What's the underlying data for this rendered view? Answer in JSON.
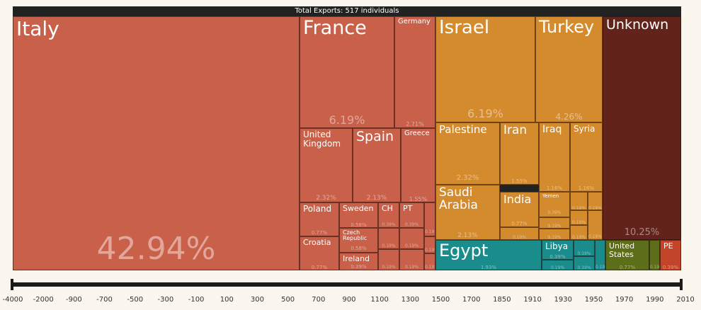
{
  "header": {
    "title": "Total Exports: 517 individuals"
  },
  "colors": {
    "europe": "#c96049",
    "asia": "#d38b2e",
    "africa": "#1a8c8c",
    "unknown": "#62231b",
    "america": "#5c6e19",
    "southamerica": "#c2452a"
  },
  "chart_data": {
    "type": "treemap",
    "title": "Total Exports: 517 individuals",
    "total": 517,
    "tiles": [
      {
        "name": "Italy",
        "group": "europe",
        "percent": "42.94%"
      },
      {
        "name": "France",
        "group": "europe",
        "percent": "6.19%"
      },
      {
        "name": "Germany",
        "group": "europe",
        "percent": "2.71%"
      },
      {
        "name": "United Kingdom",
        "group": "europe",
        "percent": "2.32%"
      },
      {
        "name": "Spain",
        "group": "europe",
        "percent": "2.13%"
      },
      {
        "name": "Greece",
        "group": "europe",
        "percent": "1.55%"
      },
      {
        "name": "Poland",
        "group": "europe",
        "percent": "0.77%"
      },
      {
        "name": "Sweden",
        "group": "europe",
        "percent": "0.58%"
      },
      {
        "name": "CH",
        "group": "europe",
        "percent": "0.39%"
      },
      {
        "name": "PT",
        "group": "europe",
        "percent": "0.39%"
      },
      {
        "name": "Croatia",
        "group": "europe",
        "percent": "0.77%"
      },
      {
        "name": "Czech Republic",
        "group": "europe",
        "percent": "0.58%"
      },
      {
        "name": "Ireland",
        "group": "europe",
        "percent": "0.39%"
      },
      {
        "name": "",
        "group": "europe",
        "percent": "0.19%"
      },
      {
        "name": "",
        "group": "europe",
        "percent": "0.19%"
      },
      {
        "name": "",
        "group": "europe",
        "percent": "0.19%"
      },
      {
        "name": "",
        "group": "europe",
        "percent": "0.19%"
      },
      {
        "name": "",
        "group": "europe",
        "percent": "0.19%"
      },
      {
        "name": "",
        "group": "europe",
        "percent": "0.19%"
      },
      {
        "name": "",
        "group": "europe",
        "percent": "0.19%"
      },
      {
        "name": "",
        "group": "europe",
        "percent": "0.19%"
      },
      {
        "name": "",
        "group": "europe",
        "percent": "0.19%"
      },
      {
        "name": "Israel",
        "group": "asia",
        "percent": "6.19%"
      },
      {
        "name": "Turkey",
        "group": "asia",
        "percent": "4.26%"
      },
      {
        "name": "Palestine",
        "group": "asia",
        "percent": "2.32%"
      },
      {
        "name": "Iran",
        "group": "asia",
        "percent": "1.55%"
      },
      {
        "name": "Iraq",
        "group": "asia",
        "percent": "1.16%"
      },
      {
        "name": "Syria",
        "group": "asia",
        "percent": "1.16%"
      },
      {
        "name": "Saudi Arabia",
        "group": "asia",
        "percent": "2.13%"
      },
      {
        "name": "India",
        "group": "asia",
        "percent": "0.77%"
      },
      {
        "name": "Yemen",
        "group": "asia",
        "percent": "0.39%"
      },
      {
        "name": "",
        "group": "asia",
        "percent": "0.19%"
      },
      {
        "name": "",
        "group": "asia",
        "percent": "0.19%"
      },
      {
        "name": "",
        "group": "asia",
        "percent": "0.19%"
      },
      {
        "name": "",
        "group": "asia",
        "percent": "0.19%"
      },
      {
        "name": "",
        "group": "asia",
        "percent": "0.19%"
      },
      {
        "name": "",
        "group": "asia",
        "percent": "0.19%"
      },
      {
        "name": "",
        "group": "asia",
        "percent": "0.19%"
      },
      {
        "name": "",
        "group": "asia",
        "percent": "0.19%"
      },
      {
        "name": "Unknown",
        "group": "unknown",
        "percent": "10.25%"
      },
      {
        "name": "Egypt",
        "group": "africa",
        "percent": "1.93%"
      },
      {
        "name": "Libya",
        "group": "africa",
        "percent": "0.39%"
      },
      {
        "name": "",
        "group": "africa",
        "percent": "0.19%"
      },
      {
        "name": "",
        "group": "africa",
        "percent": "0.19%"
      },
      {
        "name": "",
        "group": "africa",
        "percent": "0.19%"
      },
      {
        "name": "",
        "group": "africa",
        "percent": "0.19%"
      },
      {
        "name": "United States",
        "group": "america",
        "percent": "0.77%"
      },
      {
        "name": "",
        "group": "america",
        "percent": "0.19%"
      },
      {
        "name": "",
        "group": "america",
        "percent": "0.19%"
      },
      {
        "name": "PE",
        "group": "southamerica",
        "percent": "0.39%"
      }
    ],
    "timeline": {
      "ticks": [
        "-4000",
        "-2000",
        "-900",
        "-700",
        "-500",
        "-300",
        "-100",
        "100",
        "300",
        "500",
        "700",
        "900",
        "1100",
        "1300",
        "1500",
        "1700",
        "1850",
        "1910",
        "1930",
        "1950",
        "1970",
        "1990",
        "2010"
      ]
    }
  }
}
